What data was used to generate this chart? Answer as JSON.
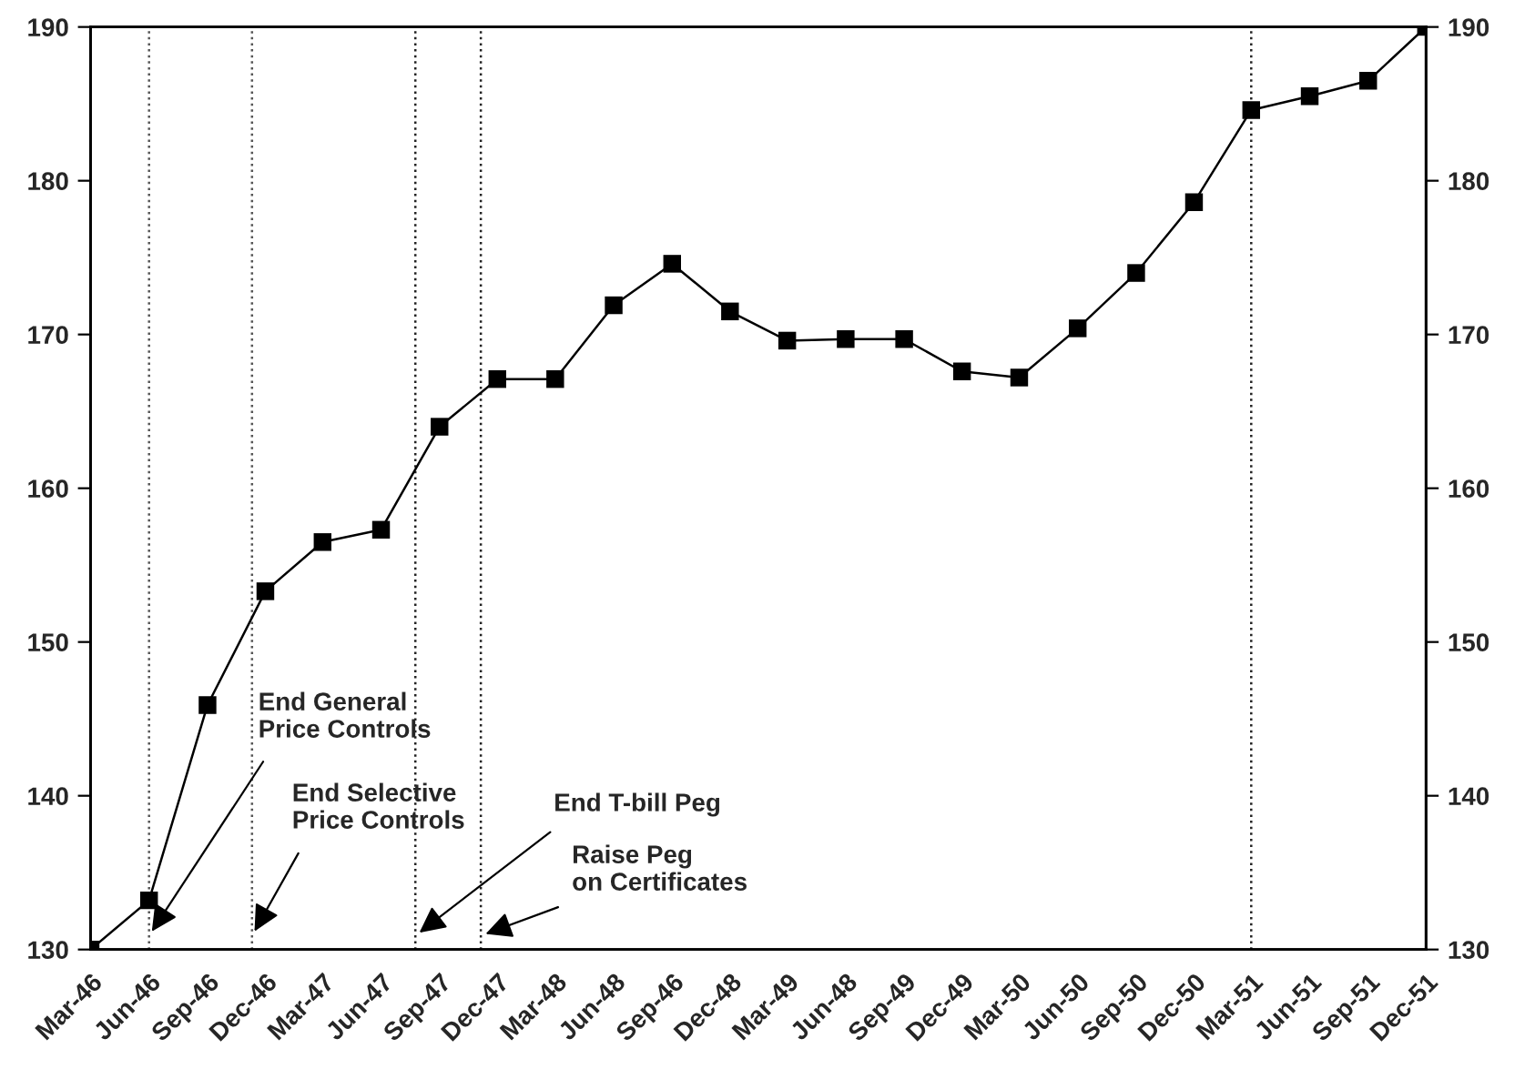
{
  "chart_data": {
    "type": "line",
    "x": [
      "1946-03",
      "1946-06",
      "1946-09",
      "1946-12",
      "1947-03",
      "1947-06",
      "1947-09",
      "1947-12",
      "1948-03",
      "1948-06",
      "1948-09",
      "1948-12",
      "1949-03",
      "1949-06",
      "1949-09",
      "1949-12",
      "1950-03",
      "1950-06",
      "1950-09",
      "1950-12",
      "1951-03",
      "1951-06",
      "1951-09",
      "1951-12"
    ],
    "series": [
      {
        "color": "#000000",
        "values": [
          130,
          133.2,
          145.9,
          153.3,
          156.5,
          157.3,
          164.0,
          167.1,
          167.1,
          171.9,
          174.6,
          171.5,
          169.6,
          169.7,
          169.7,
          167.6,
          167.2,
          170.4,
          174.0,
          178.6,
          184.6,
          185.5,
          186.5,
          190
        ]
      }
    ],
    "xlim": [
      "1946-03",
      "1951-12"
    ],
    "xticks": [
      {
        "value": "1946-03",
        "label": "Mar-46"
      },
      {
        "value": "1946-06",
        "label": "Jun-46"
      },
      {
        "value": "1946-09",
        "label": "Sep-46"
      },
      {
        "value": "1946-12",
        "label": "Dec-46"
      },
      {
        "value": "1947-03",
        "label": "Mar-47"
      },
      {
        "value": "1947-06",
        "label": "Jun-47"
      },
      {
        "value": "1947-09",
        "label": "Sep-47"
      },
      {
        "value": "1947-12",
        "label": "Dec-47"
      },
      {
        "value": "1948-03",
        "label": "Mar-48"
      },
      {
        "value": "1948-06",
        "label": "Jun-48"
      },
      {
        "value": "1948-09",
        "label": "Sep-46"
      },
      {
        "value": "1948-12",
        "label": "Dec-48"
      },
      {
        "value": "1949-03",
        "label": "Mar-49"
      },
      {
        "value": "1949-06",
        "label": "Jun-48"
      },
      {
        "value": "1949-09",
        "label": "Sep-49"
      },
      {
        "value": "1949-12",
        "label": "Dec-49"
      },
      {
        "value": "1950-03",
        "label": "Mar-50"
      },
      {
        "value": "1950-06",
        "label": "Jun-50"
      },
      {
        "value": "1950-09",
        "label": "Sep-50"
      },
      {
        "value": "1950-12",
        "label": "Dec-50"
      },
      {
        "value": "1951-03",
        "label": "Mar-51"
      },
      {
        "value": "1951-06",
        "label": "Jun-51"
      },
      {
        "value": "1951-09",
        "label": "Sep-51"
      },
      {
        "value": "1951-12",
        "label": "Dec-51"
      }
    ],
    "ylim": [
      130,
      190
    ],
    "yticks": [
      130,
      140,
      150,
      160,
      170,
      180,
      190
    ],
    "y2lim": [
      130,
      190
    ],
    "y2ticks": [
      130,
      140,
      150,
      160,
      170,
      180,
      190
    ],
    "marker": "square",
    "line_style": "solid",
    "grid": false,
    "ref_lines": [
      {
        "axis": "x",
        "value": "1946-06",
        "label": "End General\nPrice Controls",
        "color": "#555555",
        "line_style": "dotted"
      },
      {
        "axis": "x",
        "value": "1946-11-10",
        "label": "End Selective\nPrice Controls",
        "color": "#555555",
        "line_style": "dotted"
      },
      {
        "axis": "x",
        "value": "1947-07-25",
        "label": "End T-bill Peg",
        "color": "#222222",
        "line_style": "dotted"
      },
      {
        "axis": "x",
        "value": "1947-11-05",
        "label": "Raise Peg\non Certificates",
        "color": "#222222",
        "line_style": "dotted"
      },
      {
        "axis": "x",
        "value": "1951-03",
        "color": "#222222",
        "line_style": "dotted"
      }
    ]
  }
}
